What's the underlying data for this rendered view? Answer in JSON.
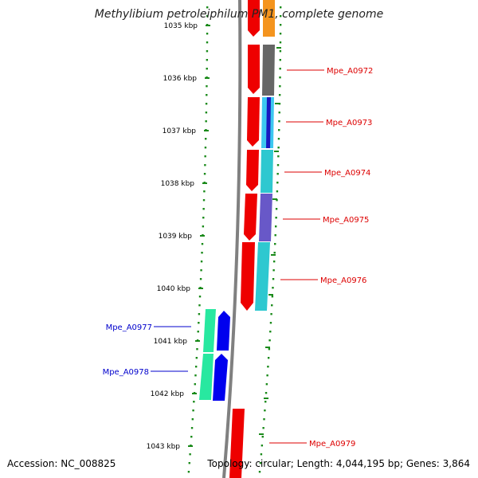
{
  "title": "Methylibium petroleiphilum PM1, complete genome",
  "accession": "Accession: NC_008825",
  "summary": "Topology: circular; Length: 4,044,195 bp; Genes: 3,864",
  "ticks": [
    "1035 kbp",
    "1036 kbp",
    "1037 kbp",
    "1038 kbp",
    "1039 kbp",
    "1040 kbp",
    "1041 kbp",
    "1042 kbp",
    "1043 kbp"
  ],
  "colors": {
    "backbone": "#808080",
    "dots": "#1a8a1a",
    "forward_strand": "#ee0000",
    "forward_label": "#dd0000",
    "reverse_strand": "#0000ee",
    "reverse_label": "#0000cc",
    "orange": "#f4941e",
    "gray": "#666666",
    "cyan": "#2ec8d0",
    "purple": "#6858c8",
    "sky": "#3cc8f0",
    "navy": "#1818c0",
    "spring_green": "#28e8a0"
  },
  "genes": [
    {
      "id": "Mpe_A0972",
      "strand": "forward",
      "function_color": "gray"
    },
    {
      "id": "Mpe_A0973",
      "strand": "forward",
      "function_color": "sky"
    },
    {
      "id": "Mpe_A0974",
      "strand": "forward",
      "function_color": "cyan"
    },
    {
      "id": "Mpe_A0975",
      "strand": "forward",
      "function_color": "purple"
    },
    {
      "id": "Mpe_A0976",
      "strand": "forward",
      "function_color": "cyan"
    },
    {
      "id": "Mpe_A0977",
      "strand": "reverse",
      "function_color": "spring_green"
    },
    {
      "id": "Mpe_A0978",
      "strand": "reverse",
      "function_color": "spring_green"
    },
    {
      "id": "Mpe_A0979",
      "strand": "forward",
      "function_color": null
    }
  ]
}
